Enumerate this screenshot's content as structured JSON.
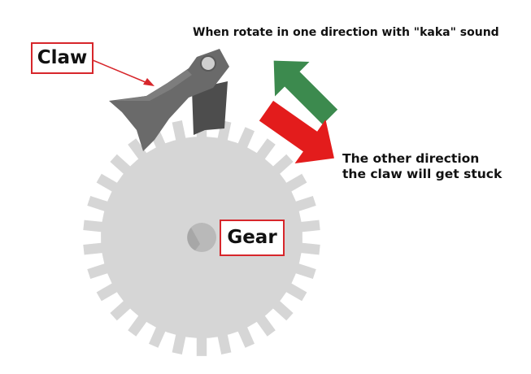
{
  "labels": {
    "claw": "Claw",
    "gear": "Gear"
  },
  "captions": {
    "top": "When rotate in one direction with \"kaka\" sound",
    "bottom_line1": "The other direction",
    "bottom_line2": "the claw will get stuck"
  },
  "colors": {
    "gear": "#d6d6d6",
    "claw": "#6a6a6a",
    "claw_dark": "#4d4d4d",
    "green_arrow": "#3c8a4e",
    "red_arrow": "#e31c1c",
    "label_border": "#d7262b",
    "pointer_line": "#d7262b"
  },
  "gear": {
    "teeth": 30
  }
}
